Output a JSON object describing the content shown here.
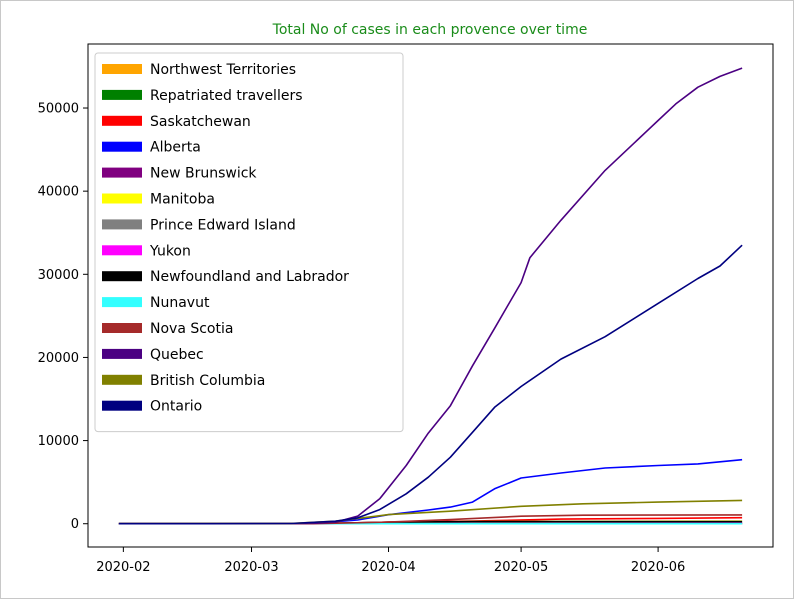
{
  "chart_data": {
    "type": "line",
    "title": "Total No of cases in each provence over time",
    "title_color": "#1a8c1a",
    "xlabel": "",
    "ylabel": "",
    "x_ticks": [
      "2020-02",
      "2020-03",
      "2020-04",
      "2020-05",
      "2020-06"
    ],
    "x_range": [
      "2020-01-31",
      "2020-06-20"
    ],
    "ylim": [
      0,
      55000
    ],
    "y_ticks": [
      0,
      10000,
      20000,
      30000,
      40000,
      50000
    ],
    "grid": false,
    "legend_position": "upper-left",
    "series": [
      {
        "name": "Northwest Territories",
        "color": "#ffa500",
        "points": [
          [
            "2020-01-31",
            0
          ],
          [
            "2020-03-20",
            0
          ],
          [
            "2020-04-10",
            5
          ],
          [
            "2020-06-20",
            5
          ]
        ]
      },
      {
        "name": "Repatriated travellers",
        "color": "#008000",
        "points": [
          [
            "2020-01-31",
            0
          ],
          [
            "2020-03-10",
            0
          ],
          [
            "2020-03-25",
            13
          ],
          [
            "2020-06-20",
            13
          ]
        ]
      },
      {
        "name": "Saskatchewan",
        "color": "#ff0000",
        "points": [
          [
            "2020-01-31",
            0
          ],
          [
            "2020-03-15",
            0
          ],
          [
            "2020-04-01",
            200
          ],
          [
            "2020-04-20",
            320
          ],
          [
            "2020-05-10",
            560
          ],
          [
            "2020-06-01",
            640
          ],
          [
            "2020-06-20",
            720
          ]
        ]
      },
      {
        "name": "Alberta",
        "color": "#0000ff",
        "points": [
          [
            "2020-01-31",
            0
          ],
          [
            "2020-03-05",
            0
          ],
          [
            "2020-03-15",
            40
          ],
          [
            "2020-03-25",
            450
          ],
          [
            "2020-04-01",
            1080
          ],
          [
            "2020-04-10",
            1650
          ],
          [
            "2020-04-15",
            2000
          ],
          [
            "2020-04-20",
            2600
          ],
          [
            "2020-04-25",
            4200
          ],
          [
            "2020-05-01",
            5500
          ],
          [
            "2020-05-10",
            6100
          ],
          [
            "2020-05-20",
            6700
          ],
          [
            "2020-06-01",
            7000
          ],
          [
            "2020-06-10",
            7200
          ],
          [
            "2020-06-20",
            7700
          ]
        ]
      },
      {
        "name": "New Brunswick",
        "color": "#800080",
        "points": [
          [
            "2020-01-31",
            0
          ],
          [
            "2020-03-15",
            0
          ],
          [
            "2020-04-01",
            90
          ],
          [
            "2020-06-20",
            160
          ]
        ]
      },
      {
        "name": "Manitoba",
        "color": "#ffff00",
        "points": [
          [
            "2020-01-31",
            0
          ],
          [
            "2020-03-15",
            0
          ],
          [
            "2020-04-01",
            130
          ],
          [
            "2020-04-20",
            250
          ],
          [
            "2020-06-20",
            300
          ]
        ]
      },
      {
        "name": "Prince Edward Island",
        "color": "#808080",
        "points": [
          [
            "2020-01-31",
            0
          ],
          [
            "2020-03-15",
            0
          ],
          [
            "2020-04-01",
            20
          ],
          [
            "2020-06-20",
            30
          ]
        ]
      },
      {
        "name": "Yukon",
        "color": "#ff00ff",
        "points": [
          [
            "2020-01-31",
            0
          ],
          [
            "2020-03-20",
            0
          ],
          [
            "2020-04-10",
            8
          ],
          [
            "2020-06-20",
            11
          ]
        ]
      },
      {
        "name": "Newfoundland and Labrador",
        "color": "#000000",
        "points": [
          [
            "2020-01-31",
            0
          ],
          [
            "2020-03-15",
            0
          ],
          [
            "2020-04-01",
            180
          ],
          [
            "2020-04-20",
            260
          ],
          [
            "2020-06-20",
            260
          ]
        ]
      },
      {
        "name": "Nunavut",
        "color": "#33ffff",
        "points": [
          [
            "2020-01-31",
            0
          ],
          [
            "2020-06-20",
            0
          ]
        ]
      },
      {
        "name": "Nova Scotia",
        "color": "#a52a2a",
        "points": [
          [
            "2020-01-31",
            0
          ],
          [
            "2020-03-15",
            0
          ],
          [
            "2020-04-01",
            200
          ],
          [
            "2020-04-15",
            500
          ],
          [
            "2020-05-01",
            900
          ],
          [
            "2020-05-15",
            1030
          ],
          [
            "2020-06-20",
            1060
          ]
        ]
      },
      {
        "name": "Quebec",
        "color": "#4b0082",
        "points": [
          [
            "2020-01-31",
            0
          ],
          [
            "2020-03-01",
            0
          ],
          [
            "2020-03-10",
            10
          ],
          [
            "2020-03-15",
            50
          ],
          [
            "2020-03-20",
            180
          ],
          [
            "2020-03-25",
            900
          ],
          [
            "2020-03-30",
            3000
          ],
          [
            "2020-04-05",
            7000
          ],
          [
            "2020-04-10",
            10900
          ],
          [
            "2020-04-15",
            14200
          ],
          [
            "2020-04-20",
            19000
          ],
          [
            "2020-04-25",
            23500
          ],
          [
            "2020-05-01",
            29000
          ],
          [
            "2020-05-03",
            32000
          ],
          [
            "2020-05-10",
            36500
          ],
          [
            "2020-05-20",
            42500
          ],
          [
            "2020-06-01",
            48500
          ],
          [
            "2020-06-05",
            50500
          ],
          [
            "2020-06-10",
            52500
          ],
          [
            "2020-06-15",
            53800
          ],
          [
            "2020-06-20",
            54800
          ]
        ]
      },
      {
        "name": "British Columbia",
        "color": "#808000",
        "points": [
          [
            "2020-01-31",
            0
          ],
          [
            "2020-02-25",
            10
          ],
          [
            "2020-03-10",
            40
          ],
          [
            "2020-03-20",
            300
          ],
          [
            "2020-04-01",
            1100
          ],
          [
            "2020-04-15",
            1500
          ],
          [
            "2020-05-01",
            2100
          ],
          [
            "2020-05-15",
            2400
          ],
          [
            "2020-06-01",
            2600
          ],
          [
            "2020-06-20",
            2800
          ]
        ]
      },
      {
        "name": "Ontario",
        "color": "#000080",
        "points": [
          [
            "2020-01-31",
            0
          ],
          [
            "2020-02-20",
            3
          ],
          [
            "2020-03-10",
            30
          ],
          [
            "2020-03-20",
            300
          ],
          [
            "2020-03-25",
            700
          ],
          [
            "2020-03-30",
            1700
          ],
          [
            "2020-04-05",
            3600
          ],
          [
            "2020-04-10",
            5600
          ],
          [
            "2020-04-15",
            8000
          ],
          [
            "2020-04-20",
            11000
          ],
          [
            "2020-04-25",
            14000
          ],
          [
            "2020-05-01",
            16500
          ],
          [
            "2020-05-10",
            19800
          ],
          [
            "2020-05-20",
            22500
          ],
          [
            "2020-06-01",
            26500
          ],
          [
            "2020-06-10",
            29500
          ],
          [
            "2020-06-15",
            31000
          ],
          [
            "2020-06-20",
            33500
          ]
        ]
      }
    ]
  }
}
